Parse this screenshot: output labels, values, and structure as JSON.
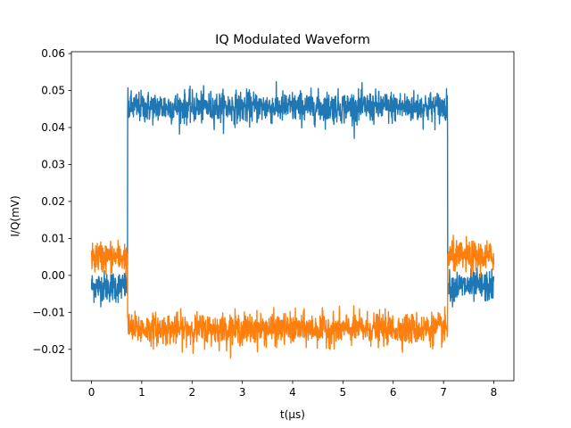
{
  "chart_data": {
    "type": "line",
    "title": "IQ Modulated Waveform",
    "xlabel": "t(μs)",
    "ylabel": "I/Q(mV)",
    "xlim": [
      -0.4,
      8.4
    ],
    "ylim": [
      -0.0285,
      0.0605
    ],
    "x_ticks": [
      0,
      1,
      2,
      3,
      4,
      5,
      6,
      7,
      8
    ],
    "x_tick_labels": [
      "0",
      "1",
      "2",
      "3",
      "4",
      "5",
      "6",
      "7",
      "8"
    ],
    "y_ticks": [
      -0.02,
      -0.01,
      0.0,
      0.01,
      0.02,
      0.03,
      0.04,
      0.05,
      0.06
    ],
    "y_tick_labels": [
      "−0.02",
      "−0.01",
      "0.00",
      "0.01",
      "0.02",
      "0.03",
      "0.04",
      "0.05",
      "0.06"
    ],
    "grid": false,
    "legend": "none",
    "pulse": {
      "start": 0.72,
      "end": 7.08,
      "t_min": 0,
      "t_max": 8,
      "samples": 1600
    },
    "series": [
      {
        "color": "#1f77b4",
        "baseline_off": -0.003,
        "baseline_on": 0.0455,
        "noise": 0.0028
      },
      {
        "color": "#ff7f0e",
        "baseline_off": 0.005,
        "baseline_on": -0.0145,
        "noise": 0.0028
      }
    ]
  }
}
